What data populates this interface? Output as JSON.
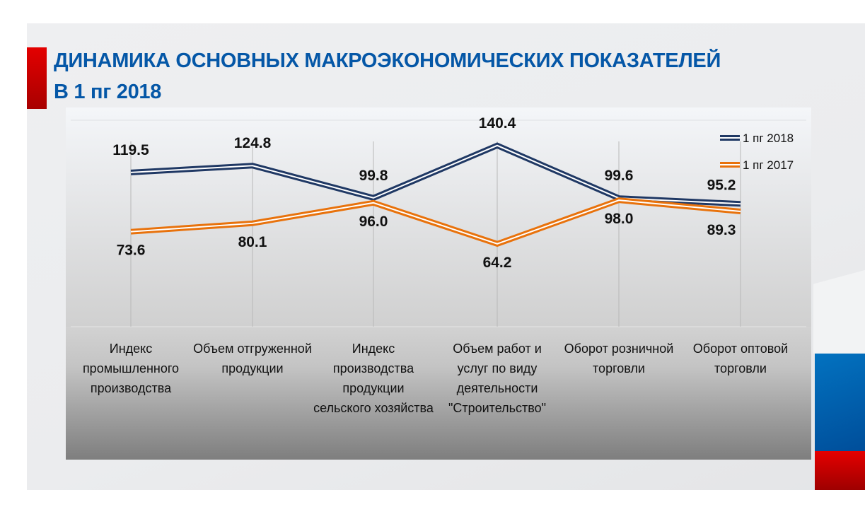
{
  "title_line1": "ДИНАМИКА ОСНОВНЫХ МАКРОЭКОНОМИЧЕСКИХ ПОКАЗАТЕЛЕЙ",
  "title_line2": "В 1 пг 2018",
  "chart_data": {
    "type": "line",
    "title": "ДИНАМИКА ОСНОВНЫХ МАКРОЭКОНОМИЧЕСКИХ ПОКАЗАТЕЛЕЙ В 1 пг 2018",
    "categories": [
      "Индекс промышленного производства",
      "Объем отгруженной продукции",
      "Индекс производства продукции сельского хозяйства",
      "Объем работ и услуг по виду деятельности \"Строительство\"",
      "Оборот розничной торговли",
      "Оборот оптовой торговли"
    ],
    "series": [
      {
        "name": "1 пг 2018",
        "color": "#1f3864",
        "values": [
          119.5,
          124.8,
          99.8,
          140.4,
          99.6,
          95.2
        ],
        "labels": [
          "119.5",
          "124.8",
          "99.8",
          "140.4",
          "99.6",
          "95.2"
        ]
      },
      {
        "name": "1 пг 2017",
        "color": "#e8720c",
        "values": [
          73.6,
          80.1,
          96.0,
          64.2,
          98.0,
          89.3
        ],
        "labels": [
          "73.6",
          "80.1",
          "96.0",
          "64.2",
          "98.0",
          "89.3"
        ]
      }
    ],
    "ylim": [
      0,
      160
    ],
    "grid": true,
    "legend": "top-right",
    "xlabel": "",
    "ylabel": ""
  }
}
